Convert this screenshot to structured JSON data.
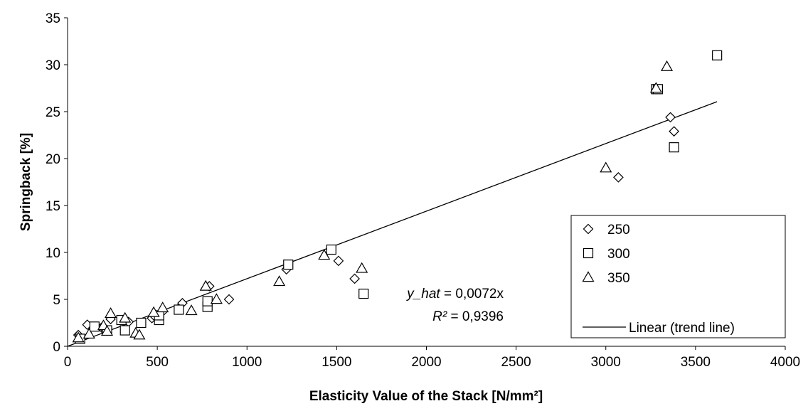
{
  "chart_data": {
    "type": "scatter",
    "xlabel": "Elasticity Value of the Stack [N/mm²]",
    "ylabel": "Springback [%]",
    "xlim": [
      0,
      4000
    ],
    "ylim": [
      0,
      35
    ],
    "xticks": [
      "0",
      "500",
      "1000",
      "1500",
      "2000",
      "2500",
      "3000",
      "3500",
      "4000"
    ],
    "yticks": [
      "0",
      "5",
      "10",
      "15",
      "20",
      "25",
      "30",
      "35"
    ],
    "grid": false,
    "legend_position": "right",
    "series": [
      {
        "name": "250",
        "marker": "diamond",
        "points": [
          [
            60,
            1.2
          ],
          [
            70,
            0.8
          ],
          [
            110,
            2.3
          ],
          [
            190,
            2.0
          ],
          [
            210,
            1.8
          ],
          [
            240,
            2.9
          ],
          [
            310,
            2.8
          ],
          [
            340,
            2.6
          ],
          [
            470,
            3.0
          ],
          [
            480,
            3.3
          ],
          [
            530,
            3.7
          ],
          [
            640,
            4.6
          ],
          [
            790,
            6.4
          ],
          [
            900,
            5.0
          ],
          [
            1220,
            8.2
          ],
          [
            1510,
            9.1
          ],
          [
            1600,
            7.2
          ],
          [
            3070,
            18.0
          ],
          [
            3360,
            24.4
          ],
          [
            3380,
            22.9
          ]
        ]
      },
      {
        "name": "300",
        "marker": "square",
        "points": [
          [
            70,
            0.8
          ],
          [
            150,
            2.1
          ],
          [
            220,
            1.7
          ],
          [
            300,
            2.8
          ],
          [
            320,
            1.7
          ],
          [
            410,
            2.5
          ],
          [
            510,
            2.8
          ],
          [
            510,
            3.3
          ],
          [
            620,
            3.9
          ],
          [
            780,
            4.2
          ],
          [
            780,
            4.8
          ],
          [
            1230,
            8.7
          ],
          [
            1470,
            10.3
          ],
          [
            1650,
            5.6
          ],
          [
            3280,
            27.4
          ],
          [
            3290,
            27.4
          ],
          [
            3380,
            21.2
          ],
          [
            3620,
            31.0
          ]
        ]
      },
      {
        "name": "350",
        "marker": "triangle",
        "points": [
          [
            60,
            0.9
          ],
          [
            120,
            1.3
          ],
          [
            200,
            2.2
          ],
          [
            220,
            1.6
          ],
          [
            240,
            3.5
          ],
          [
            320,
            3.0
          ],
          [
            380,
            1.4
          ],
          [
            400,
            1.2
          ],
          [
            480,
            3.6
          ],
          [
            530,
            4.1
          ],
          [
            690,
            3.8
          ],
          [
            770,
            6.4
          ],
          [
            830,
            5.0
          ],
          [
            1180,
            6.9
          ],
          [
            1430,
            9.7
          ],
          [
            1640,
            8.3
          ],
          [
            3000,
            19.0
          ],
          [
            3280,
            27.5
          ],
          [
            3340,
            29.8
          ]
        ]
      }
    ],
    "trendline": {
      "name": "Linear (trend line)",
      "slope": 0.0072,
      "x_range": [
        0,
        3620
      ]
    },
    "annotation": {
      "equation_var": "y_hat",
      "equation_rest": " = 0,0072x",
      "r2_var": "R²",
      "r2_rest": " = 0,9396"
    }
  }
}
